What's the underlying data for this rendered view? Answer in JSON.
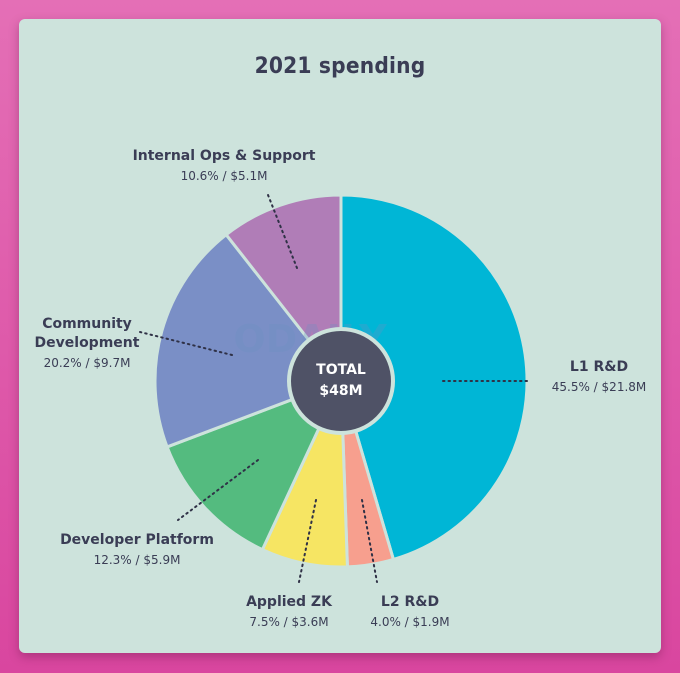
{
  "chart_data": {
    "type": "pie",
    "title": "2021 spending",
    "center_label": [
      "TOTAL",
      "$48M"
    ],
    "slices": [
      {
        "name": "L1 R&D",
        "percent": 45.5,
        "value_label": "45.5% / $21.8M",
        "color": "#00b6d6"
      },
      {
        "name": "L2 R&D",
        "percent": 4.0,
        "value_label": "4.0% / $1.9M",
        "color": "#f79f8e"
      },
      {
        "name": "Applied ZK",
        "percent": 7.5,
        "value_label": "7.5% / $3.6M",
        "color": "#f6e563"
      },
      {
        "name": "Developer Platform",
        "percent": 12.3,
        "value_label": "12.3% / $5.9M",
        "color": "#54bb7f"
      },
      {
        "name": "Community Development",
        "name_lines": [
          "Community",
          "Development"
        ],
        "percent": 20.2,
        "value_label": "20.2% / $9.7M",
        "color": "#7a8fc6"
      },
      {
        "name": "Internal Ops & Support",
        "percent": 10.6,
        "value_label": "10.6% / $5.1M",
        "color": "#b07db7"
      }
    ]
  },
  "watermark": "ODAILY",
  "colors": {
    "background": "#cde3dc",
    "text": "#3a3d55",
    "center": "#4f5266"
  }
}
